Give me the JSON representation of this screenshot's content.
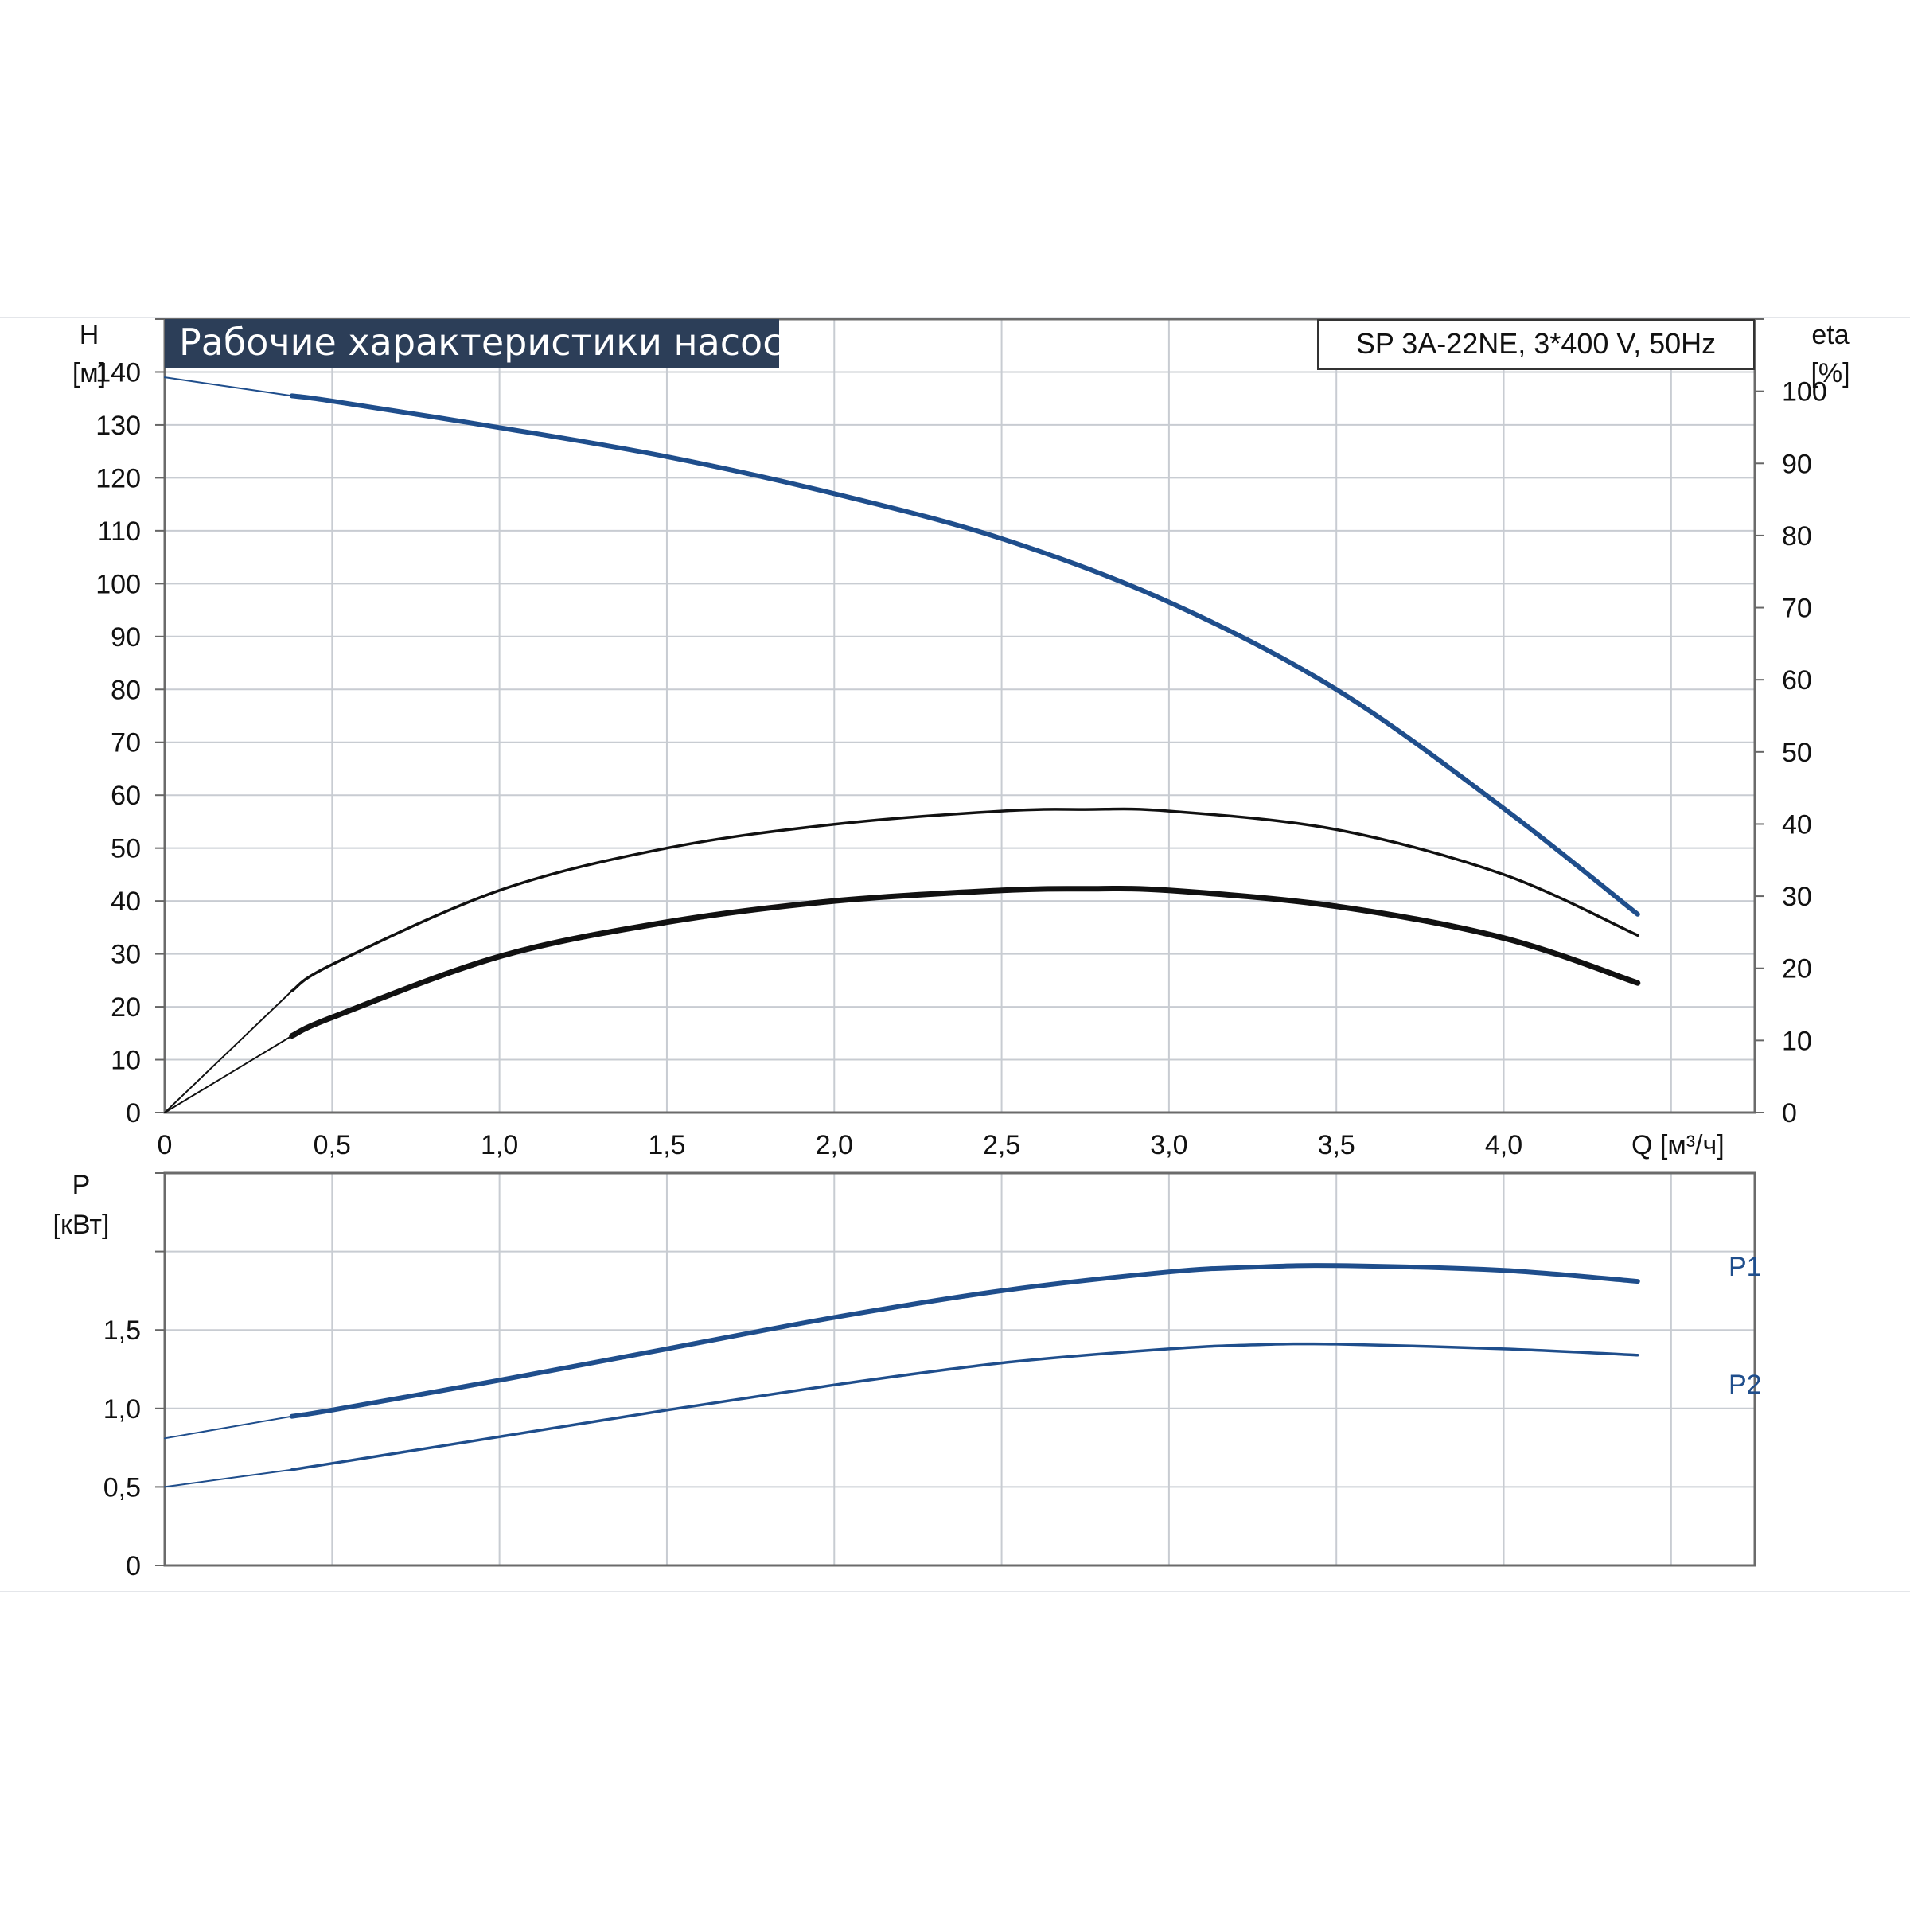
{
  "chart_data": [
    {
      "type": "line",
      "title": "Рабочие характеристики насоса",
      "model_label": "SP 3A-22NE, 3*400 V, 50Hz",
      "xlabel": "Q [м³/ч]",
      "y_left_label": {
        "symbol": "H",
        "unit": "[м]"
      },
      "y_right_label": {
        "symbol": "eta",
        "unit": "[%]"
      },
      "xlim": [
        0,
        4.75
      ],
      "ylim_left": [
        0,
        150
      ],
      "ylim_right": [
        0,
        110
      ],
      "x_ticks": [
        "0",
        "0,5",
        "1,0",
        "1,5",
        "2,0",
        "2,5",
        "3,0",
        "3,5",
        "4,0"
      ],
      "y_left_ticks": [
        "0",
        "10",
        "20",
        "30",
        "40",
        "50",
        "60",
        "70",
        "80",
        "90",
        "100",
        "110",
        "120",
        "130",
        "140"
      ],
      "y_right_ticks": [
        "0",
        "10",
        "20",
        "30",
        "40",
        "50",
        "60",
        "70",
        "80",
        "90",
        "100"
      ],
      "grid": true,
      "series": [
        {
          "key": "head",
          "axis": "left",
          "color": "#1f4e8c",
          "x": [
            0,
            0.38,
            0.5,
            1.0,
            1.5,
            2.0,
            2.5,
            3.0,
            3.5,
            4.0,
            4.4
          ],
          "values": [
            139,
            135.5,
            134.5,
            129.5,
            124,
            117,
            108.5,
            96.5,
            80,
            57.5,
            37.5
          ]
        },
        {
          "key": "curve-upper",
          "axis": "left",
          "color": "#111111",
          "x": [
            0,
            0.38,
            0.5,
            1.0,
            1.5,
            2.0,
            2.5,
            2.75,
            3.0,
            3.5,
            4.0,
            4.4
          ],
          "values": [
            0,
            23,
            28,
            42,
            50,
            54.5,
            57,
            57.3,
            57,
            53.5,
            45,
            33.5
          ]
        },
        {
          "key": "curve-lower",
          "axis": "left",
          "color": "#111111",
          "x": [
            0,
            0.38,
            0.5,
            1.0,
            1.5,
            2.0,
            2.5,
            2.75,
            3.0,
            3.5,
            4.0,
            4.4
          ],
          "values": [
            0,
            14.5,
            18,
            29.5,
            36,
            40,
            42,
            42.3,
            42,
            39,
            33,
            24.5
          ]
        }
      ]
    },
    {
      "type": "line",
      "xlabel": "",
      "y_left_label": {
        "symbol": "P",
        "unit": "[кВт]"
      },
      "xlim": [
        0,
        4.75
      ],
      "ylim": [
        0,
        2.5
      ],
      "y_ticks": [
        "0",
        "0,5",
        "1,0",
        "1,5"
      ],
      "grid": true,
      "series": [
        {
          "key": "p1",
          "name": "P1",
          "color": "#1f4e8c",
          "x": [
            0,
            0.38,
            0.5,
            1.0,
            1.5,
            2.0,
            2.5,
            3.0,
            3.25,
            3.5,
            4.0,
            4.4
          ],
          "values": [
            0.81,
            0.95,
            0.99,
            1.18,
            1.38,
            1.58,
            1.75,
            1.87,
            1.9,
            1.91,
            1.88,
            1.81
          ]
        },
        {
          "key": "p2",
          "name": "P2",
          "color": "#1f4e8c",
          "x": [
            0,
            0.38,
            0.5,
            1.0,
            1.5,
            2.0,
            2.5,
            3.0,
            3.25,
            3.5,
            4.0,
            4.4
          ],
          "values": [
            0.5,
            0.61,
            0.65,
            0.82,
            0.99,
            1.15,
            1.29,
            1.38,
            1.405,
            1.41,
            1.38,
            1.34
          ]
        }
      ]
    }
  ],
  "colors": {
    "grid": "#c8ccd2",
    "axis": "#666666",
    "title_bg": "#2c3e58",
    "curve_blue": "#1f4e8c",
    "curve_black": "#111111"
  }
}
